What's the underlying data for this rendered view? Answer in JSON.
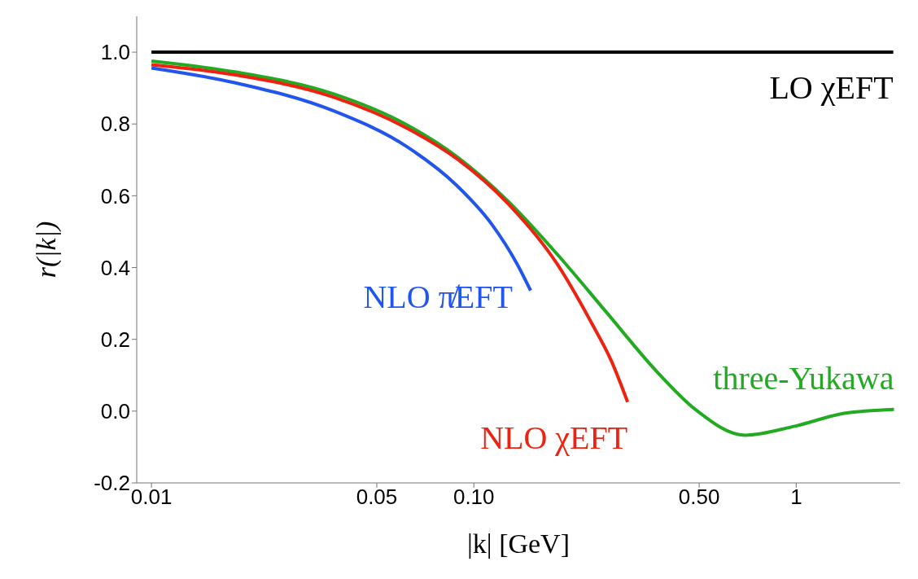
{
  "chart_data": {
    "type": "line",
    "xlabel": "|k|  [GeV]",
    "ylabel": "r(|k|)",
    "log": "x",
    "xlim": [
      0.009,
      2.1
    ],
    "ylim": [
      -0.2,
      1.1
    ],
    "xticks": [
      {
        "value": 0.01,
        "label": "0.01"
      },
      {
        "value": 0.05,
        "label": "0.05"
      },
      {
        "value": 0.1,
        "label": "0.10"
      },
      {
        "value": 0.5,
        "label": "0.50"
      },
      1
    ],
    "yticks": [
      {
        "value": -0.2,
        "label": "-0.2"
      },
      {
        "value": 0,
        "label": "0.0"
      },
      0.2,
      0.4,
      0.6,
      0.8,
      {
        "value": 1,
        "label": "1.0"
      }
    ],
    "grid": false,
    "legend": false,
    "marker": "none",
    "series": [
      {
        "name": "LO χEFT",
        "color": "#000000",
        "x": [
          0.01,
          2
        ],
        "values": [
          1,
          1
        ]
      },
      {
        "name": "three-Yukawa",
        "color": "#22aa22",
        "x": [
          0.01,
          0.0181,
          0.0366,
          0.0624,
          0.0889,
          0.127,
          0.181,
          0.258,
          0.367,
          0.486,
          0.694,
          0.99,
          1.41,
          2.01
        ],
        "values": [
          0.975,
          0.945,
          0.884,
          0.796,
          0.708,
          0.587,
          0.438,
          0.275,
          0.113,
          0.005,
          -0.067,
          -0.042,
          -0.006,
          0.005
        ]
      },
      {
        "name": "NLO χEFT",
        "color": "#ee2211",
        "x": [
          0.01,
          0.0181,
          0.0366,
          0.0624,
          0.0889,
          0.127,
          0.181,
          0.231,
          0.267,
          0.3
        ],
        "values": [
          0.965,
          0.937,
          0.875,
          0.787,
          0.702,
          0.58,
          0.411,
          0.248,
          0.14,
          0.025
        ]
      },
      {
        "name": "NLO π̸EFT",
        "color": "#2255ee",
        "x": [
          0.01,
          0.0181,
          0.0366,
          0.0624,
          0.0889,
          0.114,
          0.136,
          0.15
        ],
        "values": [
          0.956,
          0.915,
          0.837,
          0.735,
          0.627,
          0.519,
          0.411,
          0.336
        ]
      }
    ]
  }
}
